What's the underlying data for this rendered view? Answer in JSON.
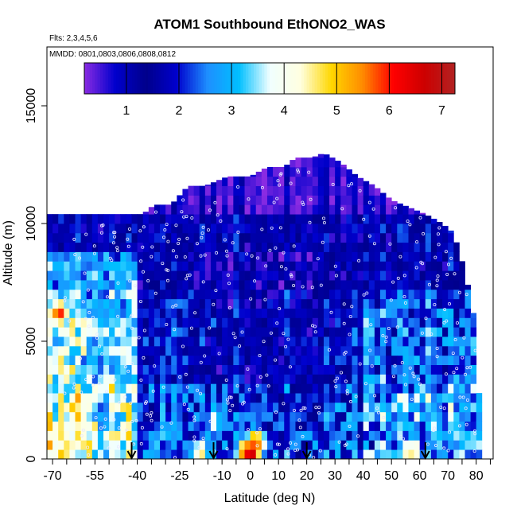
{
  "chart_data": {
    "type": "heatmap",
    "title": "ATOM1 Southbound EthONO2_WAS",
    "flights_label": "Flts: 2,3,4,5,6",
    "dates_label": "MMDD: 0801,0803,0806,0808,0812",
    "xlabel": "Latitude (deg N)",
    "ylabel": "Altitude (m)",
    "xlim": [
      -72,
      86
    ],
    "ylim": [
      0,
      17500
    ],
    "x_ticks": [
      -70,
      -55,
      -40,
      -25,
      -10,
      0,
      10,
      20,
      30,
      40,
      50,
      60,
      70,
      80
    ],
    "x_tick_labels": [
      "-70",
      "-55",
      "-40",
      "-25",
      "-10",
      "0",
      "10",
      "20",
      "30",
      "40",
      "50",
      "60",
      "70",
      "80"
    ],
    "y_ticks": [
      0,
      5000,
      10000,
      15000
    ],
    "y_tick_labels": [
      "0",
      "5000",
      "10000",
      "15000"
    ],
    "colorbar": {
      "range": [
        0.2,
        7.25
      ],
      "ticks": [
        1,
        2,
        3,
        4,
        5,
        6,
        7
      ],
      "tick_labels": [
        "1",
        "2",
        "3",
        "4",
        "5",
        "6",
        "7"
      ],
      "colors": [
        "#8a2be2",
        "#0000cd",
        "#00008b",
        "#0000cd",
        "#1e90ff",
        "#00bfff",
        "#f0ffff",
        "#ffffe0",
        "#ffd700",
        "#ff8c00",
        "#ff0000",
        "#cd0000",
        "#b22222"
      ]
    },
    "arrow_latitudes": [
      -42,
      -13,
      20,
      62
    ],
    "envelope": [
      [
        -66,
        10400
      ],
      [
        -60,
        10400
      ],
      [
        -52,
        10400
      ],
      [
        -46,
        10400
      ],
      [
        -38,
        10400
      ],
      [
        -34,
        10800
      ],
      [
        -28,
        10800
      ],
      [
        -22,
        11600
      ],
      [
        -16,
        11600
      ],
      [
        -8,
        12000
      ],
      [
        0,
        12000
      ],
      [
        6,
        12400
      ],
      [
        12,
        12400
      ],
      [
        16,
        12800
      ],
      [
        22,
        12800
      ],
      [
        26,
        13000
      ],
      [
        32,
        12600
      ],
      [
        38,
        12000
      ],
      [
        44,
        11600
      ],
      [
        50,
        11000
      ],
      [
        56,
        10700
      ],
      [
        62,
        10400
      ],
      [
        68,
        10000
      ],
      [
        72,
        9600
      ],
      [
        76,
        8000
      ],
      [
        80,
        5600
      ],
      [
        82,
        0
      ]
    ],
    "hotspots": [
      {
        "lat": 0,
        "alt": 300,
        "value": 7
      },
      {
        "lat": 2,
        "alt": 700,
        "value": 6
      },
      {
        "lat": -68,
        "alt": 6200,
        "value": 6
      },
      {
        "lat": -68,
        "alt": 1200,
        "value": 5
      },
      {
        "lat": 57,
        "alt": 300,
        "value": 4.8
      },
      {
        "lat": -18,
        "alt": 300,
        "value": 4.5
      },
      {
        "lat": -55,
        "alt": 800,
        "value": 4.2
      },
      {
        "lat": -50,
        "alt": 3200,
        "value": 4.3
      },
      {
        "lat": -12,
        "alt": 1600,
        "value": 3.8
      }
    ]
  }
}
